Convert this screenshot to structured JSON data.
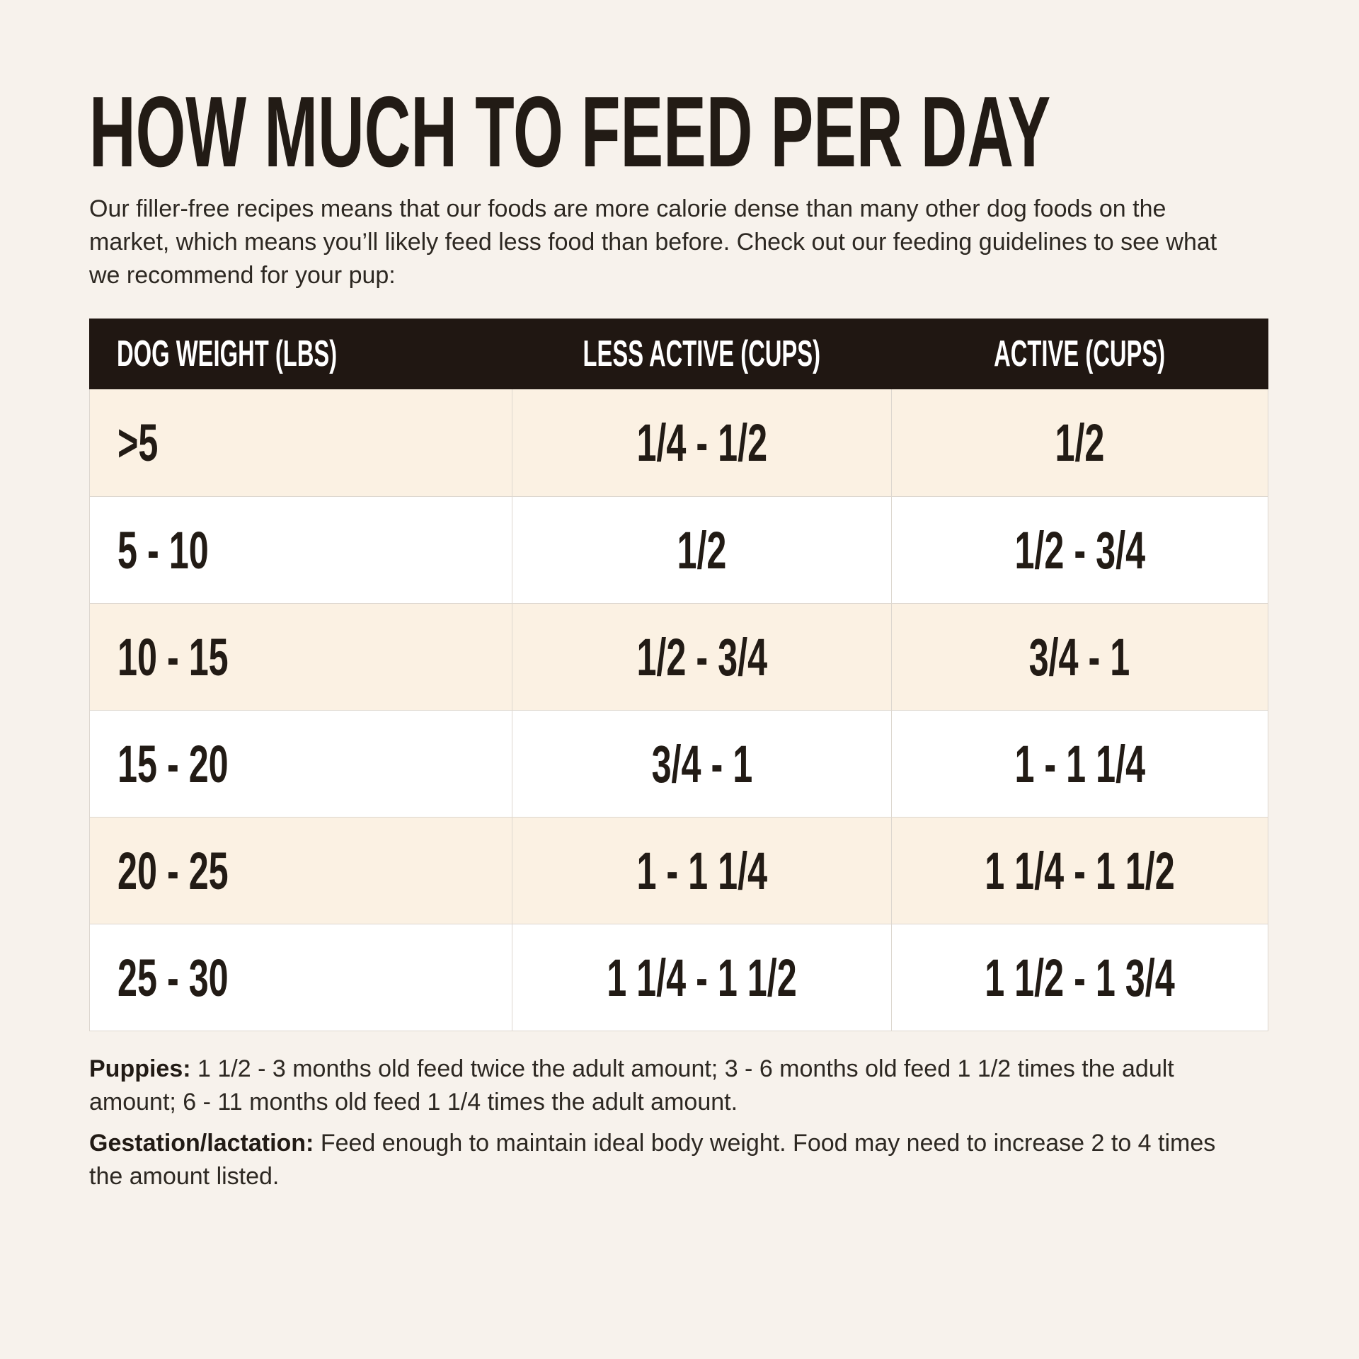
{
  "colors": {
    "page_bg": "#f7f2ec",
    "header_bg": "#201712",
    "row_alt_bg": "#fbf1e3",
    "row_bg": "#ffffff",
    "ink": "#221b15",
    "body_text": "#2d2822",
    "header_text": "#ffffff",
    "divider": "#ddd7cf"
  },
  "header": {
    "title": "HOW MUCH TO FEED PER DAY",
    "intro": "Our filler-free recipes means that our foods are more calorie dense than many other dog foods on the market, which means you’ll likely feed less food than before. Check out our feeding guidelines to see what we recommend for your pup:"
  },
  "table": {
    "columns": [
      "DOG WEIGHT (LBS)",
      "LESS ACTIVE (CUPS)",
      "ACTIVE (CUPS)"
    ],
    "rows": [
      {
        "weight": ">5",
        "less_active": "1/4 - 1/2",
        "active": "1/2"
      },
      {
        "weight": "5 - 10",
        "less_active": "1/2",
        "active": "1/2 - 3/4"
      },
      {
        "weight": "10 - 15",
        "less_active": "1/2 - 3/4",
        "active": "3/4 - 1"
      },
      {
        "weight": "15 - 20",
        "less_active": "3/4 - 1",
        "active": "1 - 1 1/4"
      },
      {
        "weight": "20 - 25",
        "less_active": "1 - 1 1/4",
        "active": "1 1/4 - 1 1/2"
      },
      {
        "weight": "25 - 30",
        "less_active": "1 1/4 - 1 1/2",
        "active": "1 1/2 - 1 3/4"
      }
    ]
  },
  "footnotes": {
    "puppies_label": "Puppies:",
    "puppies_text": "1 1/2 - 3 months old feed twice the adult amount; 3 - 6 months old feed 1 1/2 times the adult amount; 6 - 11 months old feed 1 1/4 times the adult amount.",
    "gestation_label": "Gestation/lactation:",
    "gestation_text": "Feed enough to maintain ideal body weight. Food may need to increase 2 to 4 times the amount listed."
  }
}
